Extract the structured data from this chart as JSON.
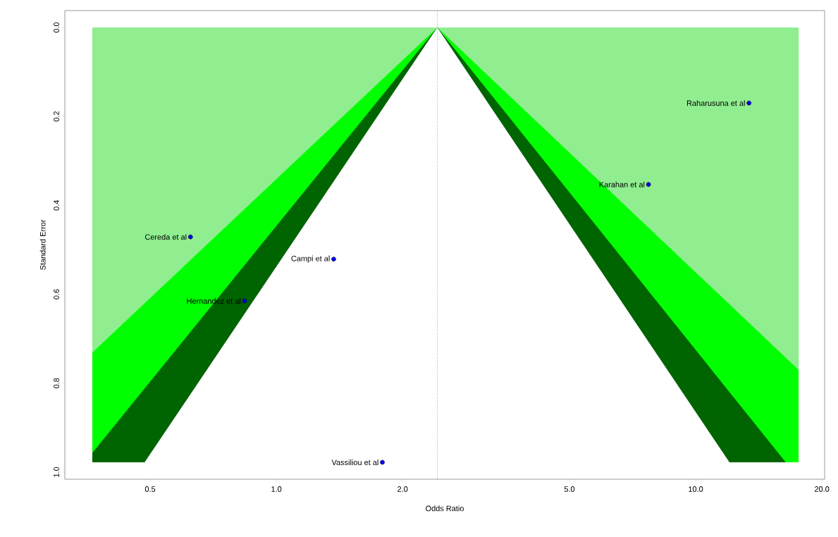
{
  "chart_data": {
    "type": "scatter",
    "xlabel": "Odds Ratio",
    "ylabel": "Standard Error",
    "log": "x",
    "xlim": [
      0.313,
      20.3
    ],
    "ylim": [
      1.016,
      -0.038
    ],
    "xticks": [
      0.5,
      {
        "value": 1,
        "label": "1.0"
      },
      {
        "value": 2,
        "label": "2.0"
      },
      {
        "value": 5,
        "label": "5.0"
      },
      {
        "value": 10,
        "label": "10.0"
      },
      {
        "value": 20,
        "label": "20.0"
      }
    ],
    "yticks": [
      {
        "value": 0,
        "label": "0.0"
      },
      0.2,
      0.4,
      0.6,
      0.8,
      {
        "value": 1,
        "label": "1.0"
      }
    ],
    "grid": false,
    "series": [
      {
        "type": "area",
        "color": "#006400",
        "x": [
          0.364,
          0.485,
          2.42,
          12.04,
          16.4
        ],
        "values": [
          0.978,
          0.978,
          0,
          0.978,
          0.978
        ]
      },
      {
        "type": "area",
        "color": "#00ff00",
        "x": [
          0.364,
          2.42,
          16.4,
          17.6
        ],
        "values": [
          0.957,
          0,
          0.978,
          0.978
        ]
      },
      {
        "type": "area",
        "color": "#90ee90",
        "x": [
          0.364,
          2.42,
          17.6
        ],
        "values": [
          0.731,
          0,
          0.77
        ]
      },
      {
        "color": "#0000ff",
        "x": [
          13.4,
          7.72,
          0.624,
          1.37,
          0.84,
          1.79
        ],
        "values": [
          0.17,
          0.353,
          0.471,
          0.521,
          0.615,
          0.978
        ]
      }
    ],
    "ref_lines": [
      {
        "axis": "x",
        "value": 2.42,
        "line_style": "dotted",
        "color": "#000000"
      }
    ],
    "annotations": [
      {
        "text": "Raharusuna et al",
        "x": 13.4,
        "y": 0.17
      },
      {
        "text": "Karahan et al",
        "x": 7.72,
        "y": 0.353
      },
      {
        "text": "Cereda et al",
        "x": 0.624,
        "y": 0.471
      },
      {
        "text": "Campi et al",
        "x": 1.37,
        "y": 0.521
      },
      {
        "text": "Hernandez et al",
        "x": 0.84,
        "y": 0.615
      },
      {
        "text": "Vassiliou et al",
        "x": 1.79,
        "y": 0.978
      }
    ]
  }
}
